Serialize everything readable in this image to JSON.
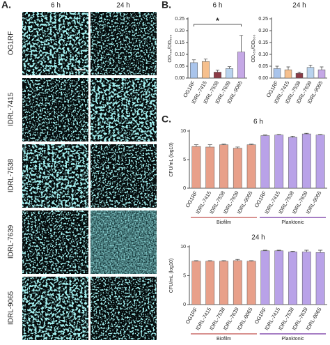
{
  "figure": {
    "panel_labels": [
      "A.",
      "B.",
      "C."
    ],
    "image_columns": [
      "6 h",
      "24 h"
    ],
    "image_rows": [
      "OG1RF",
      "IDRL-7415",
      "IDRL-7538",
      "IDRL-7639",
      "IDRL-9065"
    ]
  },
  "chart_data": [
    {
      "type": "bar",
      "title": "6 h",
      "ylabel": "OD₄₅₀/OD₆₀₀",
      "annotation": "*",
      "categories": [
        "OG1RF",
        "IDRL-7415",
        "IDRL-7538",
        "IDRL-7639",
        "IDRL-9065"
      ],
      "values": [
        0.065,
        0.07,
        0.025,
        0.04,
        0.11
      ],
      "errors": [
        0.012,
        0.01,
        0.008,
        0.008,
        0.07
      ],
      "colors": [
        "#a9c4eb",
        "#f6c08e",
        "#8c3b46",
        "#b9d3ee",
        "#c5a8e6"
      ],
      "ylim": [
        0,
        0.25
      ],
      "yticks": [
        {
          "value": 0,
          "label": "0.00"
        },
        0.05,
        {
          "value": 0.1,
          "label": "0.10"
        },
        0.15,
        {
          "value": 0.2,
          "label": "0.20"
        },
        0.25
      ]
    },
    {
      "type": "bar",
      "title": "24 h",
      "ylabel": "OD₄₅₀/OD₆₀₀",
      "categories": [
        "OG1RF",
        "IDRL-7415",
        "IDRL-7538",
        "IDRL-7639",
        "IDRL-9065"
      ],
      "values": [
        0.04,
        0.035,
        0.02,
        0.045,
        0.035
      ],
      "errors": [
        0.01,
        0.012,
        0.005,
        0.01,
        0.012
      ],
      "colors": [
        "#a9c4eb",
        "#f6c08e",
        "#8c3b46",
        "#b9d3ee",
        "#c5a8e6"
      ],
      "ylim": [
        0,
        0.25
      ],
      "yticks": [
        {
          "value": 0,
          "label": "0.00"
        },
        0.05,
        {
          "value": 0.1,
          "label": "0.10"
        },
        0.15,
        {
          "value": 0.2,
          "label": "0.20"
        },
        0.25
      ]
    },
    {
      "type": "bar",
      "title": "6 h",
      "ylabel": "CFU/mL (log10)",
      "categories": [
        "OG1RF",
        "IDRL-7415",
        "IDRL-7538",
        "IDRL-7639",
        "IDRL-9065",
        "OG1RF",
        "IDRL-7415",
        "IDRL-7538",
        "IDRL-7639",
        "IDRL-9065"
      ],
      "series": [
        {
          "name": "Biofilm",
          "color": "#e8a08a",
          "values": [
            7.3,
            7.2,
            7.6,
            7.0,
            7.6,
            null,
            null,
            null,
            null,
            null
          ],
          "errors": [
            0.3,
            0.4,
            0.1,
            0.2,
            0.1,
            null,
            null,
            null,
            null,
            null
          ]
        },
        {
          "name": "Planktonic",
          "color": "#b9a2e8",
          "values": [
            null,
            null,
            null,
            null,
            null,
            9.2,
            9.3,
            8.9,
            9.5,
            9.3
          ],
          "errors": [
            null,
            null,
            null,
            null,
            null,
            0.1,
            0.1,
            0.2,
            0.1,
            0.1
          ]
        }
      ],
      "ylim": [
        0,
        10
      ],
      "yticks": [
        0,
        5,
        10
      ]
    },
    {
      "type": "bar",
      "title": "24 h",
      "ylabel": "CFU/mL (log10)",
      "categories": [
        "OG1RF",
        "IDRL-7415",
        "IDRL-7538",
        "IDRL-7639",
        "IDRL-9065",
        "OG1RF",
        "IDRL-7415",
        "IDRL-7538",
        "IDRL-7639",
        "IDRL-9065"
      ],
      "series": [
        {
          "name": "Biofilm",
          "color": "#e8a08a",
          "values": [
            7.5,
            7.5,
            7.5,
            7.6,
            7.5,
            null,
            null,
            null,
            null,
            null
          ],
          "errors": [
            0.1,
            0.1,
            0.1,
            0.2,
            0.1,
            null,
            null,
            null,
            null,
            null
          ]
        },
        {
          "name": "Planktonic",
          "color": "#b9a2e8",
          "values": [
            null,
            null,
            null,
            null,
            null,
            9.3,
            9.3,
            9.1,
            9.1,
            9.0
          ],
          "errors": [
            null,
            null,
            null,
            null,
            null,
            0.1,
            0.1,
            0.1,
            0.3,
            0.4
          ]
        }
      ],
      "ylim": [
        0,
        10
      ],
      "yticks": [
        0,
        5,
        10
      ]
    }
  ]
}
